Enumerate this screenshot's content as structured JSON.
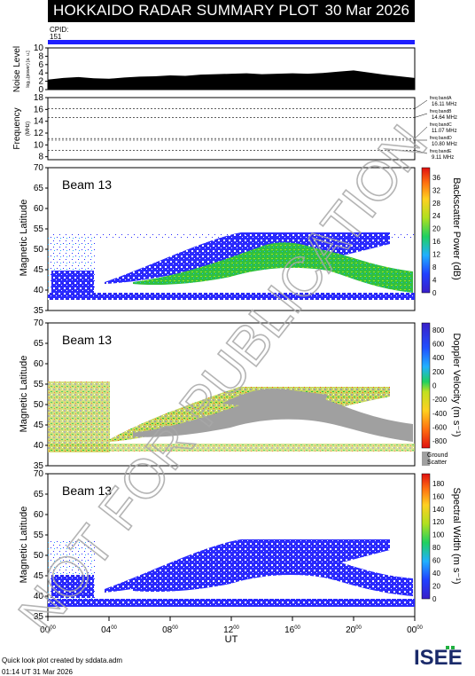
{
  "header": {
    "title": "HOKKAIDO RADAR SUMMARY PLOT",
    "date": "30 Mar 2026"
  },
  "cpid": {
    "label": "CPID:",
    "value": "151"
  },
  "watermark": "NOT FOR PUBLICATION",
  "footer": {
    "credit": "Quick look plot created by sddata.adm",
    "time": "01:14 UT 31 Mar 2026"
  },
  "logo_text": "ISEE",
  "colors": {
    "header_bg": "#000000",
    "cpid_bar": "#1f1fff",
    "ground_scatter": "#a0a0a0",
    "watermark": "#bdbdbd"
  },
  "chart_data": [
    {
      "type": "area",
      "ylabel": "Noise Level",
      "ylabel_sub": "log₁₀(power) [a. u.]",
      "ylim": [
        0,
        10
      ],
      "yticks": [
        "0",
        "2",
        "4",
        "6",
        "8",
        "10"
      ],
      "xlim": [
        0,
        24
      ],
      "x": [
        0,
        1,
        2,
        3,
        4,
        5,
        6,
        7,
        8,
        9,
        10,
        11,
        12,
        13,
        14,
        15,
        16,
        17,
        18,
        19,
        20,
        21,
        22,
        23,
        24
      ],
      "values": [
        2.4,
        2.8,
        3.0,
        2.7,
        2.6,
        2.9,
        3.1,
        3.2,
        3.4,
        3.3,
        3.6,
        3.7,
        3.8,
        3.9,
        3.7,
        3.8,
        3.9,
        3.8,
        4.0,
        4.3,
        4.6,
        4.1,
        3.6,
        3.2,
        2.8
      ]
    },
    {
      "type": "line",
      "ylabel": "Frequency",
      "ylabel_sub": "(MHz)",
      "ylim": [
        7.5,
        18
      ],
      "yticks": [
        "8",
        "10",
        "12",
        "14",
        "16",
        "18"
      ],
      "bands": [
        {
          "label": "freq bandA",
          "freq": "16.11 MHz",
          "value": 16.11
        },
        {
          "label": "freq bandB",
          "freq": "14.64 MHz",
          "value": 14.64
        },
        {
          "label": "freq bandC",
          "freq": "11.07 MHz",
          "value": 11.07
        },
        {
          "label": "freq bandD",
          "freq": "10.80 MHz",
          "value": 10.8
        },
        {
          "label": "freq bandE",
          "freq": "9.11 MHz",
          "value": 9.11
        }
      ]
    },
    {
      "type": "heatmap",
      "beam": "Beam 13",
      "ylabel": "Magnetic Latitude",
      "ylim": [
        35,
        70
      ],
      "yticks": [
        "35",
        "40",
        "45",
        "50",
        "55",
        "60",
        "65",
        "70"
      ],
      "colorbar_label": "Backscatter Power (dB)",
      "colorbar_ticks": [
        "0",
        "4",
        "8",
        "12",
        "16",
        "20",
        "24",
        "28",
        "32",
        "36"
      ],
      "colorbar_range": [
        0,
        39
      ]
    },
    {
      "type": "heatmap",
      "beam": "Beam 13",
      "ylabel": "Magnetic Latitude",
      "ylim": [
        35,
        70
      ],
      "yticks": [
        "35",
        "40",
        "45",
        "50",
        "55",
        "60",
        "65",
        "70"
      ],
      "colorbar_label": "Doppler Velocity (m s⁻¹)",
      "colorbar_ticks": [
        "800",
        "600",
        "400",
        "200",
        "0",
        "-200",
        "-400",
        "-600",
        "-800"
      ],
      "colorbar_range": [
        -900,
        900
      ],
      "ground_label_1": "Ground",
      "ground_label_2": "Scatter"
    },
    {
      "type": "heatmap",
      "beam": "Beam 13",
      "ylabel": "Magnetic Latitude",
      "ylim": [
        35,
        70
      ],
      "yticks": [
        "35",
        "40",
        "45",
        "50",
        "55",
        "60",
        "65",
        "70"
      ],
      "colorbar_label": "Spectral Width (m s⁻¹)",
      "colorbar_ticks": [
        "0",
        "20",
        "40",
        "60",
        "80",
        "100",
        "120",
        "140",
        "160",
        "180"
      ],
      "colorbar_range": [
        0,
        195
      ]
    }
  ],
  "x_axis": {
    "label": "UT",
    "ticks": [
      {
        "h": "00",
        "m": "00",
        "v": 0
      },
      {
        "h": "04",
        "m": "00",
        "v": 4
      },
      {
        "h": "08",
        "m": "00",
        "v": 8
      },
      {
        "h": "12",
        "m": "00",
        "v": 12
      },
      {
        "h": "16",
        "m": "00",
        "v": 16
      },
      {
        "h": "20",
        "m": "00",
        "v": 20
      },
      {
        "h": "00",
        "m": "00",
        "v": 24
      }
    ]
  }
}
